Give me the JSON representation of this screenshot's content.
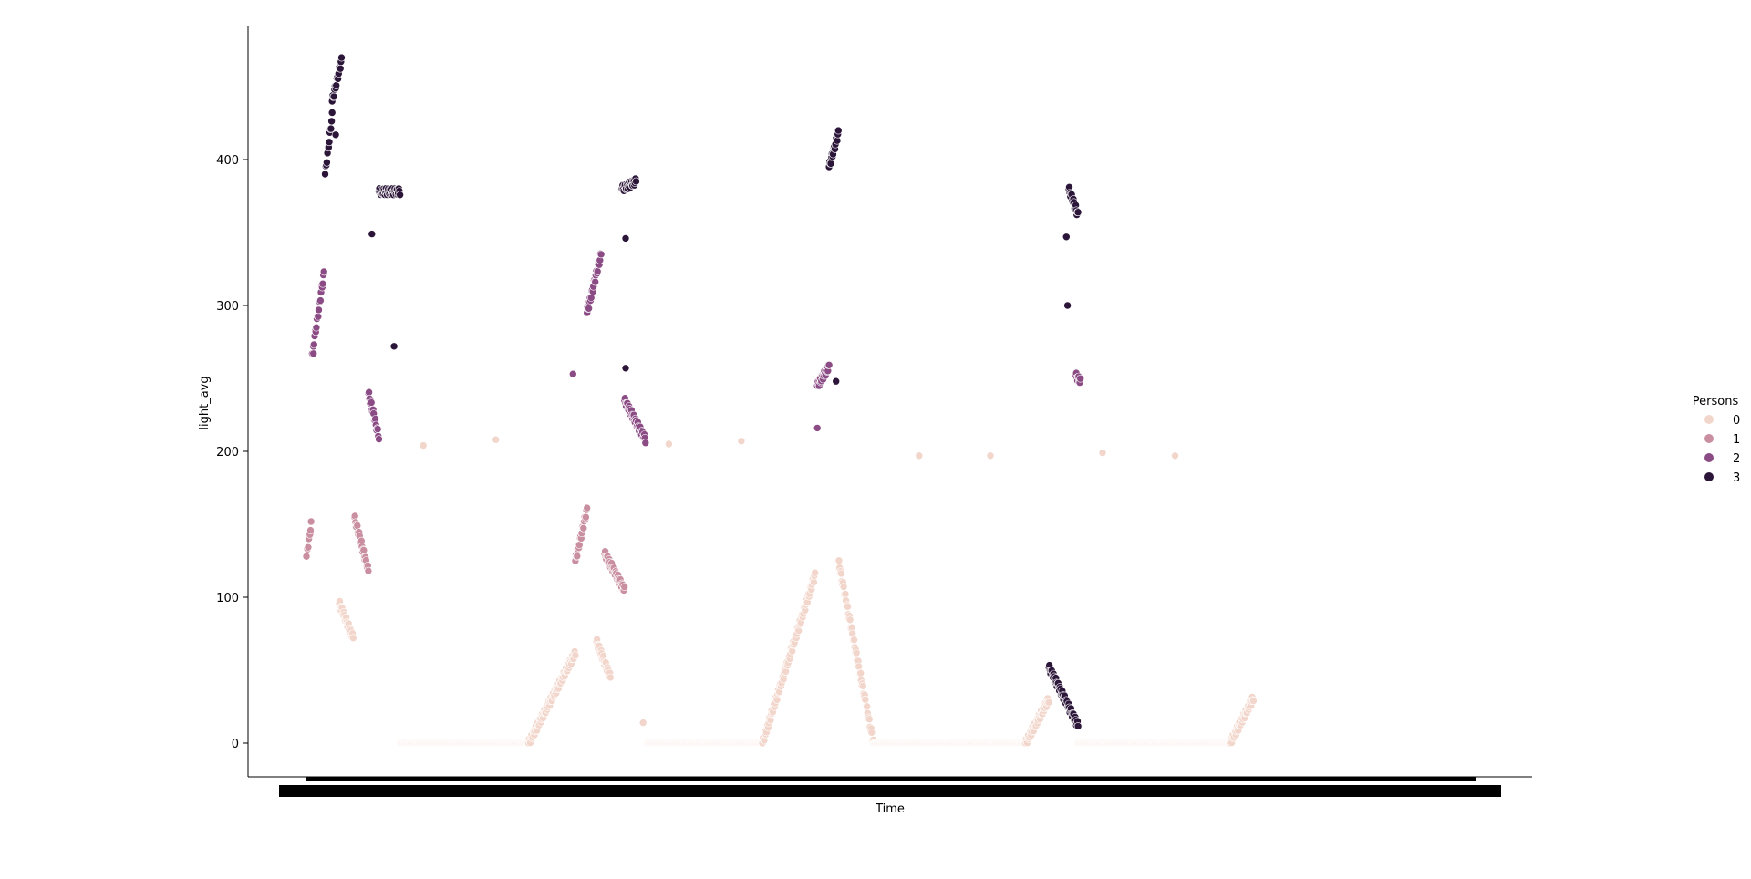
{
  "chart_data": {
    "type": "scatter",
    "title": "",
    "xlabel": "Time",
    "ylabel": "light_avg",
    "ylim": [
      -23,
      490
    ],
    "yticks": [
      0,
      100,
      200,
      300,
      400
    ],
    "xticks_note": "x tick labels are dense, overlapping and illegible",
    "x_unit": "sample index along Time",
    "xlim": [
      0,
      1000
    ],
    "legend": {
      "title": "Persons",
      "placement": "right",
      "entries": [
        {
          "label": "0",
          "color": "#f2d6cb"
        },
        {
          "label": "1",
          "color": "#c98ea0"
        },
        {
          "label": "2",
          "color": "#8b4b84"
        },
        {
          "label": "3",
          "color": "#2b1538"
        }
      ]
    },
    "series_note": "light_avg over Time, colored by number of Persons",
    "segments": [
      {
        "persons": "1",
        "x": [
          0,
          4
        ],
        "y": [
          128,
          150
        ]
      },
      {
        "persons": "2",
        "x": [
          5,
          15
        ],
        "y": [
          267,
          322
        ]
      },
      {
        "persons": "3",
        "x": [
          16,
          22
        ],
        "y": [
          390,
          430
        ]
      },
      {
        "persons": "3",
        "x": [
          22,
          30
        ],
        "y": [
          440,
          468
        ]
      },
      {
        "persons": "0",
        "x": [
          28,
          40
        ],
        "y": [
          96,
          72
        ]
      },
      {
        "persons": "1",
        "x": [
          41,
          53
        ],
        "y": [
          155,
          118
        ]
      },
      {
        "persons": "2",
        "x": [
          53,
          62
        ],
        "y": [
          240,
          210
        ]
      },
      {
        "persons": "3",
        "x": [
          62,
          80
        ],
        "y": [
          378,
          378
        ]
      },
      {
        "persons": "0",
        "x": [
          80,
          190
        ],
        "y": [
          0,
          0
        ]
      },
      {
        "persons": "0",
        "x": [
          190,
          230
        ],
        "y": [
          0,
          62
        ]
      },
      {
        "persons": "1",
        "x": [
          230,
          240
        ],
        "y": [
          125,
          160
        ]
      },
      {
        "persons": "2",
        "x": [
          240,
          252
        ],
        "y": [
          295,
          335
        ]
      },
      {
        "persons": "1",
        "x": [
          255,
          272
        ],
        "y": [
          130,
          105
        ]
      },
      {
        "persons": "0",
        "x": [
          248,
          260
        ],
        "y": [
          70,
          45
        ]
      },
      {
        "persons": "2",
        "x": [
          272,
          290
        ],
        "y": [
          235,
          208
        ]
      },
      {
        "persons": "3",
        "x": [
          270,
          282
        ],
        "y": [
          380,
          385
        ]
      },
      {
        "persons": "0",
        "x": [
          292,
          390
        ],
        "y": [
          0,
          0
        ]
      },
      {
        "persons": "0",
        "x": [
          390,
          435
        ],
        "y": [
          0,
          115
        ]
      },
      {
        "persons": "2",
        "x": [
          437,
          447
        ],
        "y": [
          245,
          258
        ]
      },
      {
        "persons": "3",
        "x": [
          447,
          455
        ],
        "y": [
          395,
          418
        ]
      },
      {
        "persons": "0",
        "x": [
          455,
          485
        ],
        "y": [
          125,
          0
        ]
      },
      {
        "persons": "0",
        "x": [
          485,
          615
        ],
        "y": [
          0,
          0
        ]
      },
      {
        "persons": "0",
        "x": [
          615,
          635
        ],
        "y": [
          0,
          30
        ]
      },
      {
        "persons": "3",
        "x": [
          635,
          660
        ],
        "y": [
          52,
          12
        ]
      },
      {
        "persons": "3",
        "x": [
          652,
          660
        ],
        "y": [
          380,
          362
        ]
      },
      {
        "persons": "2",
        "x": [
          658,
          662
        ],
        "y": [
          252,
          248
        ]
      },
      {
        "persons": "0",
        "x": [
          660,
          790
        ],
        "y": [
          0,
          0
        ]
      },
      {
        "persons": "0",
        "x": [
          790,
          810
        ],
        "y": [
          0,
          31
        ]
      }
    ],
    "isolated_points": [
      {
        "persons": "0",
        "x": 100,
        "y": 204
      },
      {
        "persons": "0",
        "x": 162,
        "y": 208
      },
      {
        "persons": "0",
        "x": 310,
        "y": 205
      },
      {
        "persons": "0",
        "x": 372,
        "y": 207
      },
      {
        "persons": "0",
        "x": 524,
        "y": 197
      },
      {
        "persons": "0",
        "x": 585,
        "y": 197
      },
      {
        "persons": "0",
        "x": 681,
        "y": 199
      },
      {
        "persons": "0",
        "x": 743,
        "y": 197
      },
      {
        "persons": "0",
        "x": 288,
        "y": 14
      },
      {
        "persons": "2",
        "x": 6,
        "y": 267
      },
      {
        "persons": "3",
        "x": 75,
        "y": 272
      },
      {
        "persons": "3",
        "x": 25,
        "y": 417
      },
      {
        "persons": "3",
        "x": 56,
        "y": 349
      },
      {
        "persons": "2",
        "x": 228,
        "y": 253
      },
      {
        "persons": "3",
        "x": 273,
        "y": 346
      },
      {
        "persons": "3",
        "x": 273,
        "y": 257
      },
      {
        "persons": "3",
        "x": 650,
        "y": 347
      },
      {
        "persons": "3",
        "x": 651,
        "y": 300
      },
      {
        "persons": "2",
        "x": 437,
        "y": 216
      },
      {
        "persons": "3",
        "x": 453,
        "y": 248
      }
    ]
  }
}
